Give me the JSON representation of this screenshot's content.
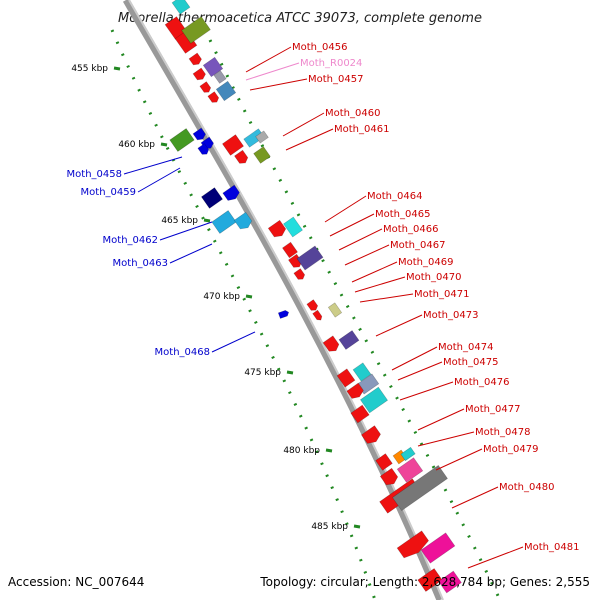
{
  "title": "Moorella thermoacetica ATCC 39073, complete genome",
  "footer": {
    "accession": "Accession: NC_007644",
    "topology": "Topology: circular; Length: 2,628,784 bp; Genes: 2,555"
  },
  "colors": {
    "forward_label": "#cc0000",
    "reverse_label": "#0000cc",
    "rna_label": "#ee88cc",
    "backbone": "#999999",
    "tick": "#228822"
  },
  "chart_data": {
    "type": "genome-map",
    "kbp_ticks": [
      "455 kbp",
      "460 kbp",
      "465 kbp",
      "470 kbp",
      "475 kbp",
      "480 kbp",
      "485 kbp"
    ],
    "forward_genes": [
      "Moth_0456",
      "Moth_R0024",
      "Moth_0457",
      "Moth_0460",
      "Moth_0461",
      "Moth_0464",
      "Moth_0465",
      "Moth_0466",
      "Moth_0467",
      "Moth_0469",
      "Moth_0470",
      "Moth_0471",
      "Moth_0473",
      "Moth_0474",
      "Moth_0475",
      "Moth_0476",
      "Moth_0477",
      "Moth_0478",
      "Moth_0479",
      "Moth_0480",
      "Moth_0481"
    ],
    "reverse_genes": [
      "Moth_0458",
      "Moth_0459",
      "Moth_0462",
      "Moth_0463",
      "Moth_0468"
    ]
  }
}
